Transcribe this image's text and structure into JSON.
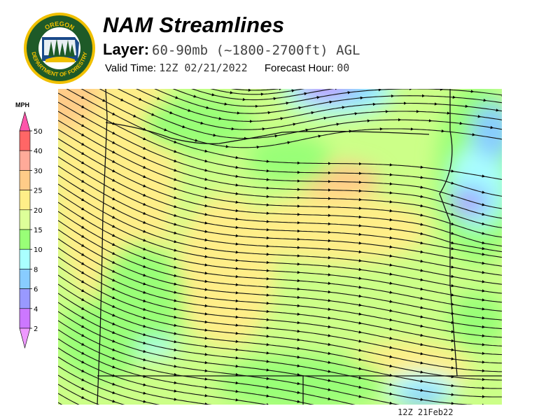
{
  "logo": {
    "text_top": "OREGON",
    "text_bottom": "DEPARTMENT OF FORESTRY",
    "colors": {
      "ring": "#f0c000",
      "field": "#1e5a28"
    }
  },
  "header": {
    "title": "NAM Streamlines",
    "layer_label": "Layer:",
    "layer_value": "60-90mb (~1800-2700ft) AGL",
    "valid_label": "Valid Time:",
    "valid_value": "12Z 02/21/2022",
    "forecast_label": "Forecast Hour:",
    "forecast_value": "00"
  },
  "legend": {
    "unit": "MPH",
    "levels": [
      "50",
      "40",
      "30",
      "25",
      "20",
      "15",
      "10",
      "8",
      "6",
      "4",
      "2"
    ],
    "colors": [
      "#ff55aa",
      "#ff6666",
      "#ffaa99",
      "#ffcc88",
      "#ffee88",
      "#ddff99",
      "#99ff77",
      "#aaffff",
      "#88ccff",
      "#9999ff",
      "#cc77ff",
      "#ee99ff"
    ]
  },
  "map": {
    "stamp": "12Z 21Feb22"
  }
}
